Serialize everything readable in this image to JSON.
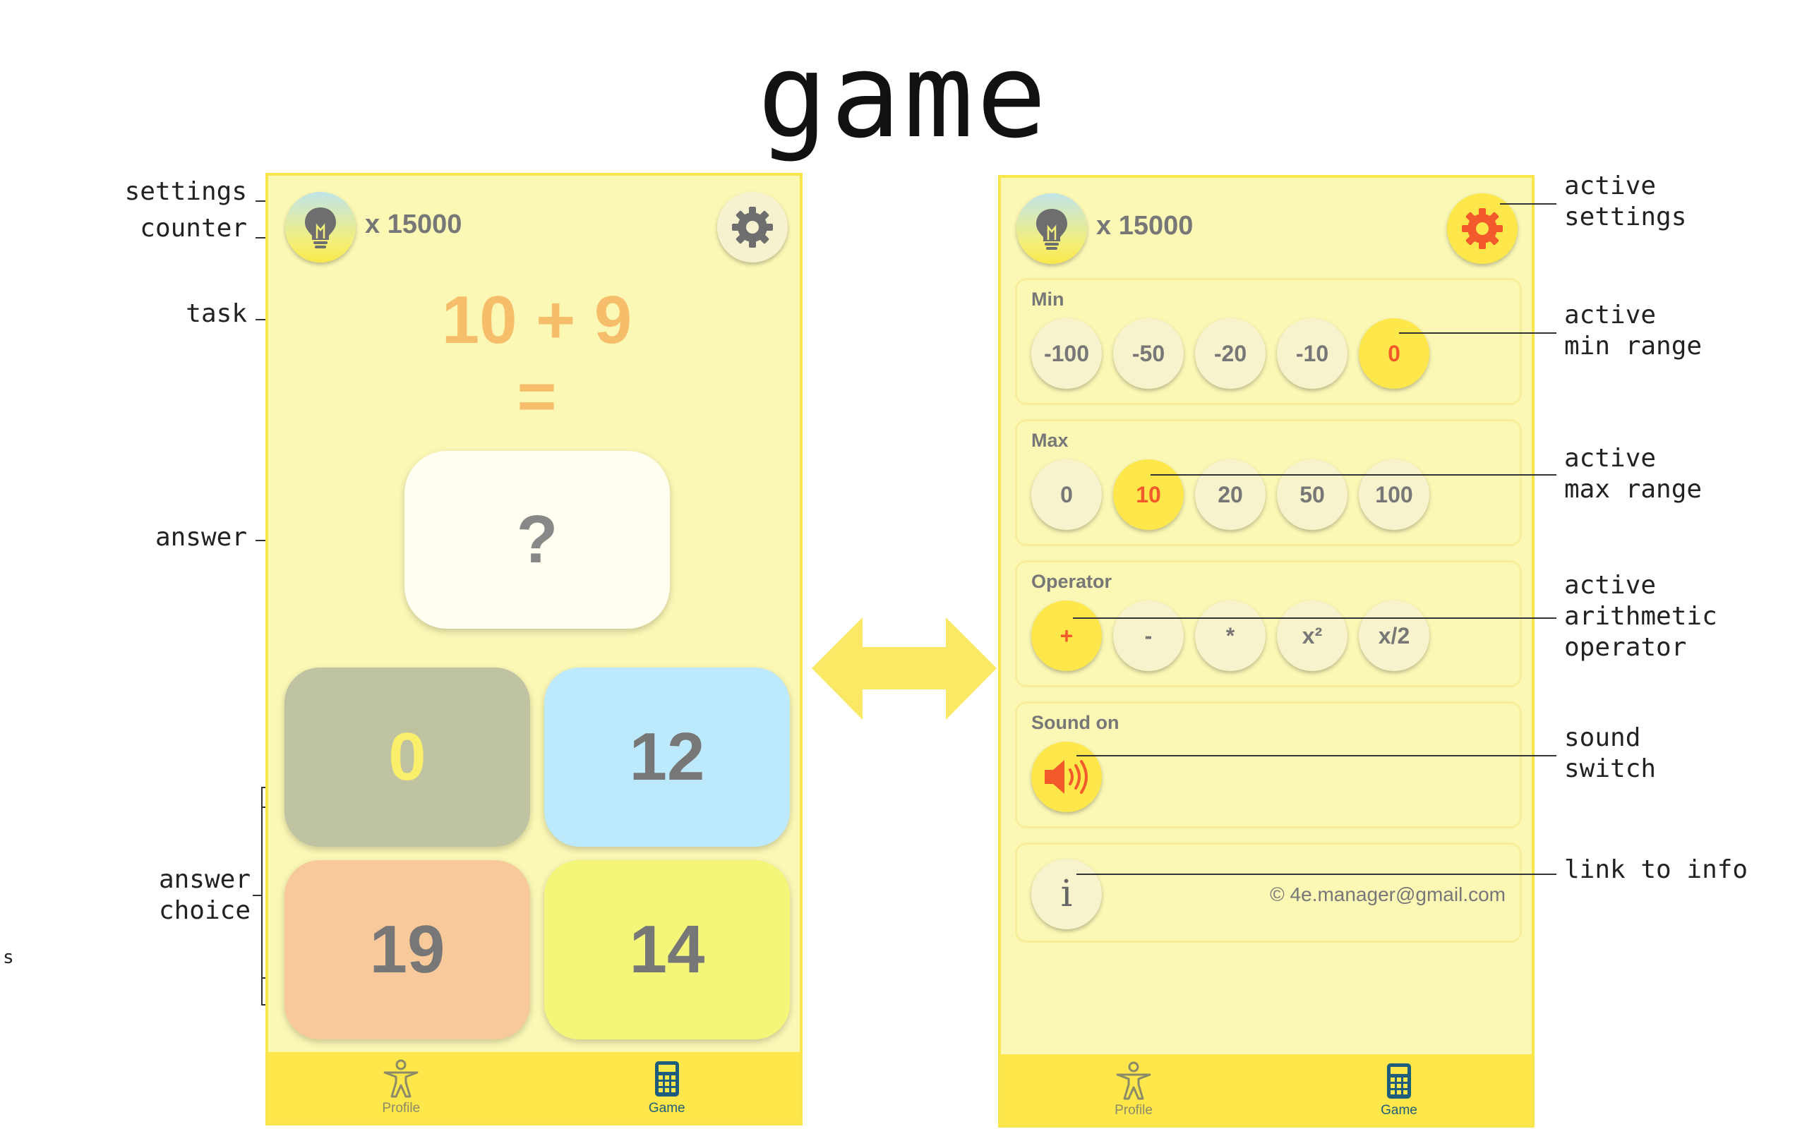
{
  "title": "game",
  "left_labels": {
    "settings": "settings",
    "counter": "counter",
    "task": "task",
    "answer": "answer",
    "answer_choice": "answer\nchoice",
    "stray": "s"
  },
  "right_labels": {
    "active_settings": "active\nsettings",
    "active_min": "active\nmin range",
    "active_max": "active\nmax range",
    "active_operator": "active\narithmetic\noperator",
    "sound_switch": "sound\nswitch",
    "link_info": "link to info"
  },
  "game_screen": {
    "counter": "x 15000",
    "task": "10 + 9",
    "equals": "=",
    "answer_placeholder": "?",
    "choices": [
      {
        "value": "0",
        "bg": "#bfc3a2",
        "color": "#f9ef6a"
      },
      {
        "value": "12",
        "bg": "#bce9fb",
        "color": "#777777"
      },
      {
        "value": "19",
        "bg": "#f8c99b",
        "color": "#777777"
      },
      {
        "value": "14",
        "bg": "#f3f679",
        "color": "#777777"
      }
    ]
  },
  "settings_screen": {
    "counter": "x 15000",
    "min": {
      "label": "Min",
      "options": [
        "-100",
        "-50",
        "-20",
        "-10",
        "0"
      ],
      "selected": "0"
    },
    "max": {
      "label": "Max",
      "options": [
        "0",
        "10",
        "20",
        "50",
        "100"
      ],
      "selected": "10"
    },
    "operator": {
      "label": "Operator",
      "options": [
        "+",
        "-",
        "*",
        "x²",
        "x/2"
      ],
      "selected": "+"
    },
    "sound": {
      "label": "Sound on"
    },
    "info": {
      "icon_label": "i",
      "email": "© 4e.manager@gmail.com"
    }
  },
  "tabs": {
    "profile": "Profile",
    "game": "Game"
  },
  "colors": {
    "accent_yellow": "#fde74a",
    "phone_bg": "#fbf8b6",
    "selected_text": "#f25a2b",
    "task": "#f6bd6a"
  }
}
